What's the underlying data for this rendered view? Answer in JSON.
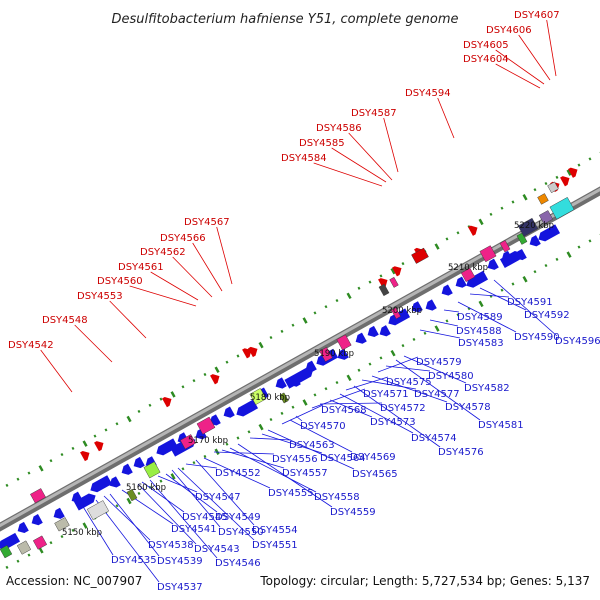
{
  "title": "Desulfitobacterium hafniense Y51, complete genome",
  "footer": {
    "accession": "Accession: NC_007907",
    "summary": "Topology: circular; Length: 5,727,534 bp; Genes: 5,137"
  },
  "colors": {
    "forward": "#dd0000",
    "reverse": "#1414dd",
    "backbone": "#8a8a8a",
    "tick": "#2e8b22",
    "pink": "#ee2288",
    "gray": "#777777"
  },
  "kbp_ticks": [
    "5150 kbp",
    "5160 kbp",
    "5170 kbp",
    "5180 kbp",
    "5190 kbp",
    "5200 kbp",
    "5210 kbp",
    "5220 kbp"
  ],
  "red_labels": [
    "DSY4542",
    "DSY4548",
    "DSY4553",
    "DSY4560",
    "DSY4561",
    "DSY4562",
    "DSY4566",
    "DSY4567",
    "DSY4584",
    "DSY4585",
    "DSY4586",
    "DSY4587",
    "DSY4594",
    "DSY4604",
    "DSY4605",
    "DSY4606",
    "DSY4607"
  ],
  "blue_labels": [
    "DSY4535",
    "DSY4537",
    "DSY4538",
    "DSY4539",
    "DSY4541",
    "DSY4543",
    "DSY4545",
    "DSY4546",
    "DSY4547",
    "DSY4549",
    "DSY4550",
    "DSY4551",
    "DSY4552",
    "DSY4554",
    "DSY4555",
    "DSY4556",
    "DSY4557",
    "DSY4558",
    "DSY4559",
    "DSY4563",
    "DSY4564",
    "DSY4565",
    "DSY4568",
    "DSY4569",
    "DSY4570",
    "DSY4571",
    "DSY4572",
    "DSY4573",
    "DSY4574",
    "DSY4575",
    "DSY4576",
    "DSY4577",
    "DSY4578",
    "DSY4579",
    "DSY4580",
    "DSY4581",
    "DSY4582",
    "DSY4583",
    "DSY4588",
    "DSY4589",
    "DSY4590",
    "DSY4591",
    "DSY4592",
    "DSY4596"
  ]
}
